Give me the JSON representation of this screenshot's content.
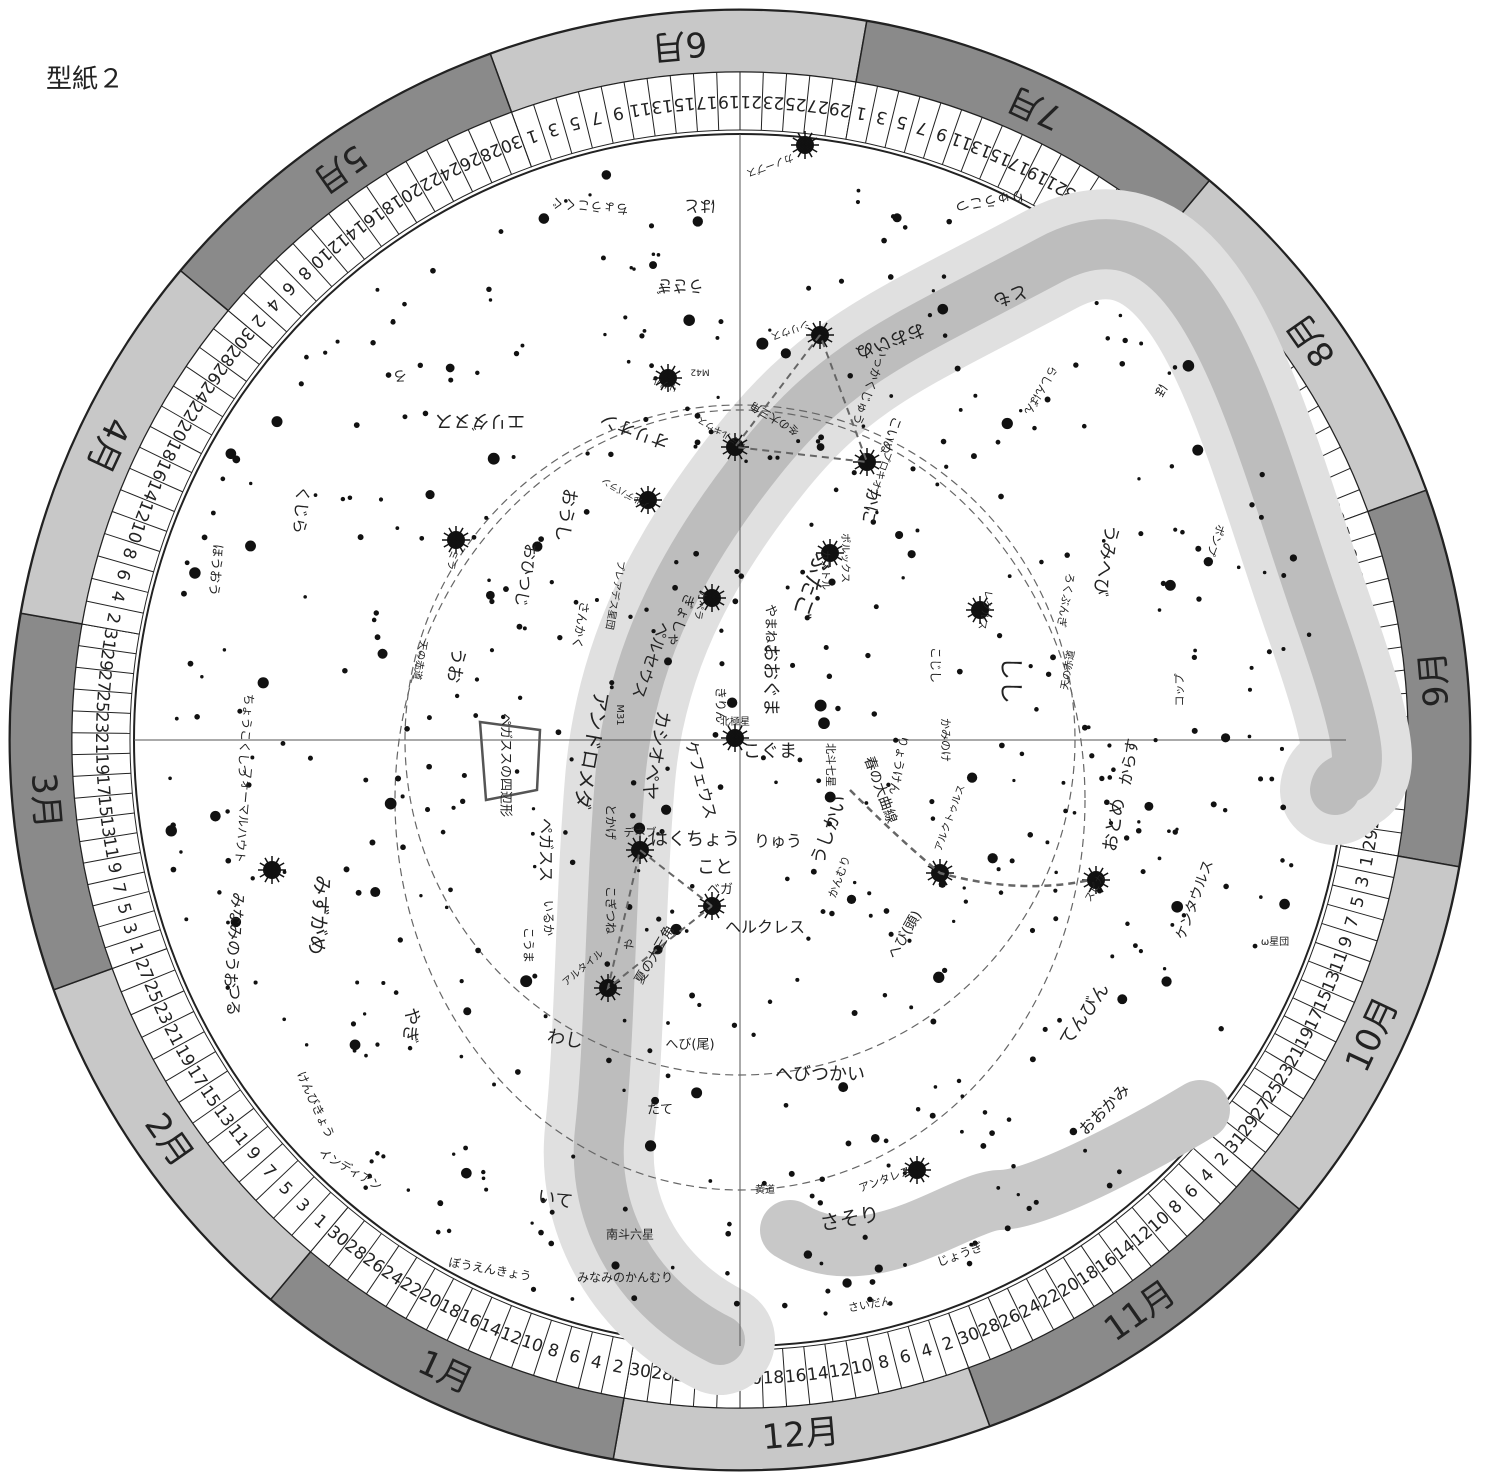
{
  "header": {
    "title": "型紙２"
  },
  "months": [
    {
      "name": "6月",
      "days": [
        1,
        3,
        5,
        7,
        9,
        11,
        13,
        15,
        17,
        19,
        21,
        23,
        25,
        27,
        29
      ]
    },
    {
      "name": "7月",
      "days": [
        1,
        3,
        5,
        7,
        9,
        11,
        13,
        15,
        17,
        19,
        21,
        23,
        25,
        27,
        29,
        31
      ]
    },
    {
      "name": "8月",
      "days": [
        2,
        4,
        6,
        8,
        10,
        12,
        14,
        16,
        18,
        20,
        22,
        24,
        26,
        28,
        30
      ]
    },
    {
      "name": "9月",
      "days": [
        1,
        3,
        5,
        7,
        9,
        11,
        13,
        15,
        17,
        19,
        21,
        23,
        25,
        27,
        29
      ]
    },
    {
      "name": "10月",
      "days": [
        1,
        3,
        5,
        7,
        9,
        11,
        13,
        15,
        17,
        19,
        21,
        23,
        25,
        27,
        29,
        31
      ]
    },
    {
      "name": "11月",
      "days": [
        2,
        4,
        6,
        8,
        10,
        12,
        14,
        16,
        18,
        20,
        22,
        24,
        26,
        28,
        30
      ]
    },
    {
      "name": "12月",
      "days": [
        2,
        4,
        6,
        8,
        10,
        12,
        14,
        16,
        18,
        20,
        22,
        24,
        26,
        28,
        30
      ]
    },
    {
      "name": "1月",
      "days": [
        2,
        4,
        6,
        8,
        10,
        12,
        14,
        16,
        18,
        20,
        22,
        24,
        26,
        28,
        30
      ]
    },
    {
      "name": "2月",
      "days": [
        1,
        3,
        5,
        7,
        9,
        11,
        13,
        15,
        17,
        19,
        21,
        23,
        25,
        27
      ]
    },
    {
      "name": "3月",
      "days": [
        1,
        3,
        5,
        7,
        9,
        11,
        13,
        15,
        17,
        19,
        21,
        23,
        25,
        27,
        29,
        31
      ]
    },
    {
      "name": "4月",
      "days": [
        2,
        4,
        6,
        8,
        10,
        12,
        14,
        16,
        18,
        20,
        22,
        24,
        26,
        28,
        30
      ]
    },
    {
      "name": "5月",
      "days": [
        2,
        4,
        6,
        8,
        10,
        12,
        14,
        16,
        18,
        20,
        22,
        24,
        26,
        28,
        30
      ]
    }
  ],
  "labels": [
    "はと",
    "ちょうこくぐ",
    "うさぎ",
    "オリオン",
    "エリダヌス",
    "ろ",
    "くじら",
    "ほうおう",
    "ちょうこくしつ",
    "フォーマルハウト",
    "みなみのうお",
    "つる",
    "みずがめ",
    "やぎ",
    "けんびきょう",
    "インディアン",
    "ぼうえんきょう",
    "いて",
    "南斗六星",
    "みなみのかんむり",
    "たて",
    "へび(尾)",
    "わし",
    "アルタイル",
    "夏の大三角",
    "や",
    "こぎつね",
    "いるか",
    "こうま",
    "ヘルクレス",
    "ベガ",
    "こと",
    "デネブ",
    "はくちょう",
    "りゅう",
    "こぐま",
    "北極星",
    "ケフェウス",
    "とかげ",
    "カシオペヤ",
    "アンドロメダ",
    "M31",
    "ペガススの四辺形",
    "ペガスス",
    "うお",
    "おひつじ",
    "おうし",
    "さんかく",
    "プレアデス星団",
    "ペルセウス",
    "ぎょしゃ",
    "カペラ",
    "やまねこ",
    "きりん",
    "おおぐま",
    "ふたご",
    "カストル",
    "ポルックス",
    "かに",
    "プロキオン",
    "こいぬ",
    "いっかくじゅう",
    "シリウス",
    "おおいぬ",
    "カノープス",
    "とも",
    "らしんばん",
    "りゅうこつ",
    "ほ",
    "ポンプ",
    "うみへび",
    "ろくぶんぎ",
    "しし",
    "レグルス",
    "こじし",
    "かみのけ",
    "りょうけん",
    "北斗七星",
    "春の大曲線",
    "うしかい",
    "アルクトゥルス",
    "かんむり",
    "へび(頭)",
    "スピカ",
    "おとめ",
    "からす",
    "コップ",
    "ケンタウルス",
    "ω星団",
    "てんびん",
    "おおかみ",
    "へびつかい",
    "アンタレス",
    "さそり",
    "じょうぎ",
    "さいだん",
    "黄道",
    "天の赤道",
    "天の赤道",
    "冬の大三角",
    "ベテルギウス",
    "リゲル",
    "アルデバラン",
    "ミラ",
    "M42"
  ]
}
